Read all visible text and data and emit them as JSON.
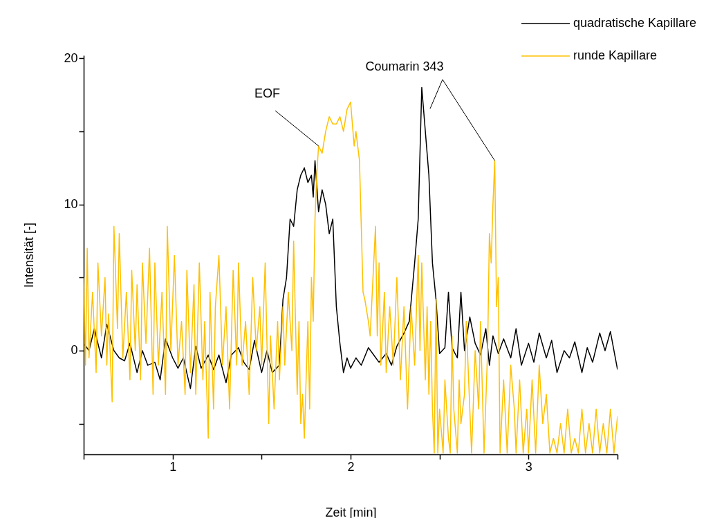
{
  "chart_data": {
    "type": "line",
    "xlabel": "Zeit [min]",
    "ylabel": "Intensität [-]",
    "xlim": [
      0.5,
      3.5
    ],
    "ylim": [
      -7.1,
      20.2
    ],
    "xticks": [
      {
        "value": 0.5,
        "label": null
      },
      1,
      {
        "value": 1.5,
        "label": null
      },
      2,
      {
        "value": 2.5,
        "label": null
      },
      3,
      {
        "value": 3.5,
        "label": null
      }
    ],
    "yticks": [
      {
        "value": -5,
        "label": null
      },
      0,
      {
        "value": 5,
        "label": null
      },
      10,
      {
        "value": 15,
        "label": null
      },
      20
    ],
    "grid": false,
    "legend": "top right",
    "line_style": "solid",
    "marker": "none",
    "annotations": [
      {
        "text": "EOF",
        "x": 1.82,
        "y": 14
      },
      {
        "text": "Coumarin 343",
        "x": 2.81,
        "y": 13
      }
    ],
    "series": [
      {
        "name": "quadratische Kapillare",
        "color": "#000000",
        "x": [
          0.5,
          0.53,
          0.56,
          0.6,
          0.63,
          0.67,
          0.7,
          0.73,
          0.76,
          0.8,
          0.83,
          0.86,
          0.9,
          0.93,
          0.96,
          1.0,
          1.03,
          1.06,
          1.1,
          1.13,
          1.16,
          1.2,
          1.23,
          1.26,
          1.3,
          1.33,
          1.37,
          1.4,
          1.43,
          1.46,
          1.5,
          1.53,
          1.56,
          1.6,
          1.62,
          1.64,
          1.66,
          1.68,
          1.7,
          1.72,
          1.74,
          1.76,
          1.78,
          1.79,
          1.8,
          1.82,
          1.84,
          1.86,
          1.88,
          1.9,
          1.92,
          1.94,
          1.96,
          1.98,
          2.0,
          2.03,
          2.06,
          2.1,
          2.13,
          2.16,
          2.2,
          2.23,
          2.26,
          2.3,
          2.33,
          2.36,
          2.38,
          2.4,
          2.42,
          2.44,
          2.46,
          2.48,
          2.5,
          2.53,
          2.55,
          2.57,
          2.6,
          2.62,
          2.64,
          2.67,
          2.7,
          2.73,
          2.76,
          2.78,
          2.8,
          2.83,
          2.86,
          2.9,
          2.93,
          2.96,
          3.0,
          3.03,
          3.06,
          3.1,
          3.13,
          3.16,
          3.2,
          3.23,
          3.26,
          3.3,
          3.33,
          3.36,
          3.4,
          3.43,
          3.46,
          3.48,
          3.5
        ],
        "values": [
          0.5,
          0,
          1.5,
          -0.5,
          1.8,
          0,
          -0.5,
          -0.7,
          0.5,
          -1.5,
          0,
          -1,
          -0.8,
          -2,
          0.8,
          -0.5,
          -1.2,
          -0.5,
          -2.6,
          0.3,
          -1.2,
          -0.3,
          -1.3,
          -0.3,
          -2.2,
          -0.3,
          0.2,
          -0.8,
          -1.3,
          0.7,
          -1.5,
          0,
          -1.5,
          -1,
          3.5,
          5,
          9,
          8.5,
          11,
          12,
          12.5,
          11.5,
          12,
          10.5,
          13,
          9.5,
          11,
          10,
          8,
          9,
          3,
          0.5,
          -1.5,
          -0.5,
          -1.2,
          -0.5,
          -1,
          0.2,
          -0.3,
          -0.8,
          -0.2,
          -1,
          0.3,
          1.2,
          2,
          6,
          9,
          18,
          15,
          12,
          6,
          3.5,
          -0.2,
          0.2,
          4,
          0.2,
          -0.5,
          4,
          0,
          2.3,
          0.5,
          -0.3,
          1.5,
          -1,
          1,
          -0.2,
          0.8,
          -0.5,
          1.5,
          -1,
          0.5,
          -0.8,
          1.2,
          -0.5,
          0.7,
          -1.5,
          0,
          -0.5,
          0.6,
          -1.5,
          0.2,
          -0.8,
          1.2,
          0,
          1.3,
          0,
          -1.3
        ]
      },
      {
        "name": "runde Kapillare",
        "color": "#ffc000",
        "x": [
          0.5,
          0.51,
          0.52,
          0.53,
          0.55,
          0.57,
          0.58,
          0.6,
          0.62,
          0.63,
          0.64,
          0.66,
          0.67,
          0.69,
          0.7,
          0.72,
          0.74,
          0.76,
          0.77,
          0.79,
          0.8,
          0.82,
          0.83,
          0.85,
          0.87,
          0.89,
          0.9,
          0.92,
          0.94,
          0.96,
          0.97,
          0.99,
          1.01,
          1.03,
          1.05,
          1.07,
          1.08,
          1.1,
          1.12,
          1.13,
          1.15,
          1.17,
          1.18,
          1.2,
          1.21,
          1.23,
          1.24,
          1.26,
          1.28,
          1.3,
          1.32,
          1.34,
          1.36,
          1.37,
          1.39,
          1.41,
          1.43,
          1.45,
          1.47,
          1.49,
          1.5,
          1.52,
          1.54,
          1.55,
          1.57,
          1.59,
          1.6,
          1.62,
          1.63,
          1.65,
          1.67,
          1.68,
          1.7,
          1.71,
          1.72,
          1.73,
          1.74,
          1.76,
          1.77,
          1.78,
          1.79,
          1.8,
          1.81,
          1.82,
          1.84,
          1.86,
          1.88,
          1.9,
          1.92,
          1.94,
          1.96,
          1.98,
          2.0,
          2.02,
          2.03,
          2.05,
          2.07,
          2.08,
          2.1,
          2.11,
          2.13,
          2.14,
          2.15,
          2.16,
          2.17,
          2.19,
          2.2,
          2.22,
          2.24,
          2.26,
          2.28,
          2.3,
          2.32,
          2.34,
          2.36,
          2.38,
          2.39,
          2.4,
          2.42,
          2.43,
          2.44,
          2.45,
          2.46,
          2.47,
          2.48,
          2.49,
          2.5,
          2.52,
          2.53,
          2.55,
          2.56,
          2.57,
          2.58,
          2.6,
          2.61,
          2.62,
          2.64,
          2.65,
          2.67,
          2.68,
          2.7,
          2.72,
          2.73,
          2.75,
          2.77,
          2.78,
          2.79,
          2.8,
          2.81,
          2.82,
          2.83,
          2.84,
          2.86,
          2.88,
          2.9,
          2.92,
          2.93,
          2.95,
          2.97,
          2.99,
          3.0,
          3.02,
          3.04,
          3.06,
          3.08,
          3.1,
          3.12,
          3.14,
          3.16,
          3.18,
          3.2,
          3.22,
          3.24,
          3.26,
          3.28,
          3.3,
          3.32,
          3.34,
          3.36,
          3.38,
          3.4,
          3.42,
          3.44,
          3.46,
          3.48,
          3.5
        ],
        "values": [
          5,
          -1,
          7,
          -0.5,
          4,
          -1.5,
          6,
          1,
          5,
          -1,
          2.5,
          -3.5,
          8.5,
          1.5,
          8,
          -0.5,
          4,
          -2,
          5.5,
          0,
          4.5,
          -2,
          6,
          0.5,
          7,
          -3,
          6,
          -1,
          4,
          -3,
          8.5,
          0,
          6.5,
          -1,
          2,
          -3,
          5.5,
          -1.5,
          4.5,
          -3,
          6,
          -2,
          2,
          -6,
          4,
          -4,
          3,
          6.5,
          -1,
          3,
          -4,
          5.5,
          -1,
          6,
          -1,
          2,
          -3,
          5,
          0,
          3,
          -1,
          6,
          -5,
          1,
          -4,
          2,
          -2,
          3,
          -1,
          4,
          0,
          7.5,
          -3,
          2,
          -5,
          -3,
          -6,
          2,
          -4,
          5,
          2,
          9,
          12,
          14,
          13.5,
          15,
          16,
          15.5,
          15.5,
          16,
          15,
          16.5,
          17,
          14,
          15,
          13,
          4,
          3.5,
          2,
          1,
          6,
          8.5,
          1,
          6,
          -1,
          4,
          -1.5,
          3,
          -1,
          5,
          -2,
          3,
          -4,
          3,
          -1,
          6.5,
          0,
          6,
          -2,
          3,
          -3,
          2,
          -4,
          -7,
          3.5,
          -7,
          -4,
          -7,
          -2,
          -6,
          -7,
          1,
          -4,
          -7,
          -2,
          -5,
          -3,
          2,
          -4,
          -7,
          0,
          -4,
          2,
          -7,
          0,
          8,
          6,
          10,
          13,
          3,
          5,
          -7,
          -2,
          -7,
          -1,
          -4,
          -7,
          -2,
          -7,
          -4,
          -7,
          -2,
          -7,
          -1,
          -5,
          -3,
          -7,
          -6,
          -7,
          -5,
          -7,
          -4,
          -7,
          -6,
          -7,
          -4,
          -7,
          -5,
          -7,
          -4,
          -7,
          -5,
          -7,
          -4,
          -7,
          -4.5
        ]
      }
    ]
  }
}
